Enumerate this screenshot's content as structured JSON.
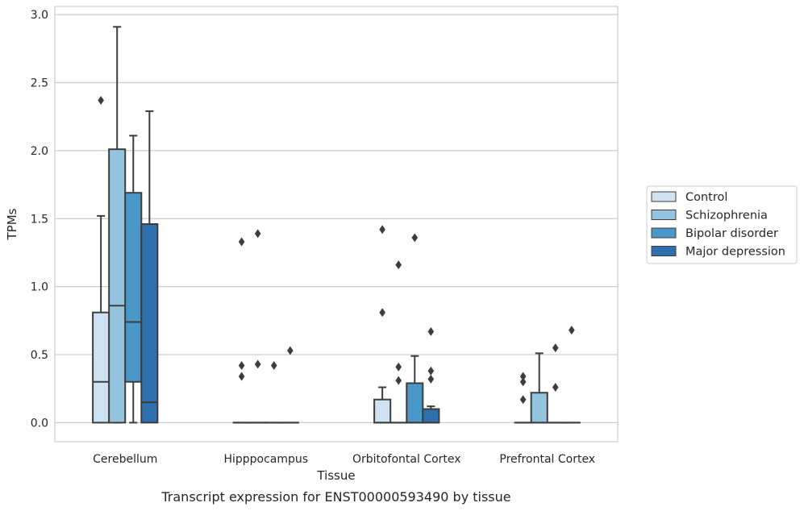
{
  "chart_data": {
    "type": "boxplot",
    "xlabel": "Tissue",
    "ylabel": "TPMs",
    "caption": "Transcript expression for ENST00000593490 by tissue",
    "ylim": [
      -0.14,
      3.06
    ],
    "yticks": [
      0.0,
      0.5,
      1.0,
      1.5,
      2.0,
      2.5,
      3.0
    ],
    "ytick_labels": [
      "0.0",
      "0.5",
      "1.0",
      "1.5",
      "2.0",
      "2.5",
      "3.0"
    ],
    "grid": "horizontal",
    "legend_position": "right",
    "categories": [
      "Cerebellum",
      "Hipppocampus",
      "Orbitofontal Cortex",
      "Prefrontal Cortex"
    ],
    "series": [
      {
        "name": "Control",
        "color": "#d0e1f2",
        "boxes": [
          {
            "q1": 0.0,
            "median": 0.3,
            "q3": 0.81,
            "whislo": 0.0,
            "whishi": 1.52,
            "fliers": [
              2.37
            ]
          },
          {
            "q1": 0.0,
            "median": 0.0,
            "q3": 0.0,
            "whislo": 0.0,
            "whishi": 0.0,
            "fliers": [
              0.34,
              0.42,
              1.33
            ]
          },
          {
            "q1": 0.0,
            "median": 0.0,
            "q3": 0.17,
            "whislo": 0.0,
            "whishi": 0.26,
            "fliers": [
              0.81,
              1.42
            ]
          },
          {
            "q1": 0.0,
            "median": 0.0,
            "q3": 0.0,
            "whislo": 0.0,
            "whishi": 0.0,
            "fliers": [
              0.17,
              0.3,
              0.34
            ]
          }
        ]
      },
      {
        "name": "Schizophrenia",
        "color": "#94c4df",
        "boxes": [
          {
            "q1": 0.0,
            "median": 0.86,
            "q3": 2.01,
            "whislo": 0.0,
            "whishi": 2.91,
            "fliers": []
          },
          {
            "q1": 0.0,
            "median": 0.0,
            "q3": 0.0,
            "whislo": 0.0,
            "whishi": 0.0,
            "fliers": [
              0.43,
              1.39
            ]
          },
          {
            "q1": 0.0,
            "median": 0.0,
            "q3": 0.0,
            "whislo": 0.0,
            "whishi": 0.0,
            "fliers": [
              0.31,
              0.41,
              1.16
            ]
          },
          {
            "q1": 0.0,
            "median": 0.0,
            "q3": 0.22,
            "whislo": 0.0,
            "whishi": 0.51,
            "fliers": []
          }
        ]
      },
      {
        "name": "Bipolar disorder",
        "color": "#4a98c9",
        "boxes": [
          {
            "q1": 0.3,
            "median": 0.74,
            "q3": 1.69,
            "whislo": 0.0,
            "whishi": 2.11,
            "fliers": []
          },
          {
            "q1": 0.0,
            "median": 0.0,
            "q3": 0.0,
            "whislo": 0.0,
            "whishi": 0.0,
            "fliers": [
              0.42
            ]
          },
          {
            "q1": 0.0,
            "median": 0.0,
            "q3": 0.29,
            "whislo": 0.0,
            "whishi": 0.49,
            "fliers": [
              1.36
            ]
          },
          {
            "q1": 0.0,
            "median": 0.0,
            "q3": 0.0,
            "whislo": 0.0,
            "whishi": 0.0,
            "fliers": [
              0.26,
              0.55
            ]
          }
        ]
      },
      {
        "name": "Major depression",
        "color": "#2e6fad",
        "boxes": [
          {
            "q1": 0.0,
            "median": 0.15,
            "q3": 1.46,
            "whislo": 0.0,
            "whishi": 2.29,
            "fliers": []
          },
          {
            "q1": 0.0,
            "median": 0.0,
            "q3": 0.0,
            "whislo": 0.0,
            "whishi": 0.0,
            "fliers": [
              0.53
            ]
          },
          {
            "q1": 0.0,
            "median": 0.0,
            "q3": 0.1,
            "whislo": 0.0,
            "whishi": 0.12,
            "fliers": [
              0.32,
              0.38,
              0.67
            ]
          },
          {
            "q1": 0.0,
            "median": 0.0,
            "q3": 0.0,
            "whislo": 0.0,
            "whishi": 0.0,
            "fliers": [
              0.68
            ]
          }
        ]
      }
    ]
  }
}
